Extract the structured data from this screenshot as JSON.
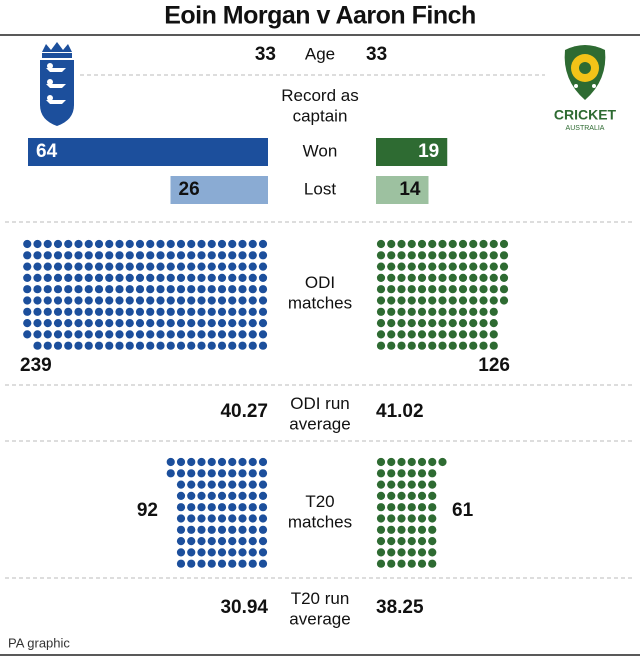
{
  "title": "Eoin Morgan v Aaron Finch",
  "footer": "PA graphic",
  "logo_text": [
    "CRICKET",
    "AUSTRALIA"
  ],
  "colors": {
    "left": "#1c4f9c",
    "left_light": "#8aabd3",
    "right": "#2e6b32",
    "right_light": "#9dc1a0"
  },
  "rows": [
    {
      "label": [
        "Age"
      ],
      "left": 33,
      "right": 33
    },
    {
      "label": [
        "Record as",
        "captain"
      ]
    },
    {
      "label": [
        "Won"
      ],
      "left": 64,
      "right": 19,
      "style": "bar"
    },
    {
      "label": [
        "Lost"
      ],
      "left": 26,
      "right": 14,
      "style": "bar-light"
    },
    {
      "label": [
        "ODI",
        "matches"
      ],
      "left": 239,
      "right": 126,
      "style": "dots"
    },
    {
      "label": [
        "ODI run",
        "average"
      ],
      "left": 40.27,
      "right": 41.02
    },
    {
      "label": [
        "T20",
        "matches"
      ],
      "left": 92,
      "right": 61,
      "style": "dots"
    },
    {
      "label": [
        "T20 run",
        "average"
      ],
      "left": 30.94,
      "right": 38.25
    }
  ]
}
